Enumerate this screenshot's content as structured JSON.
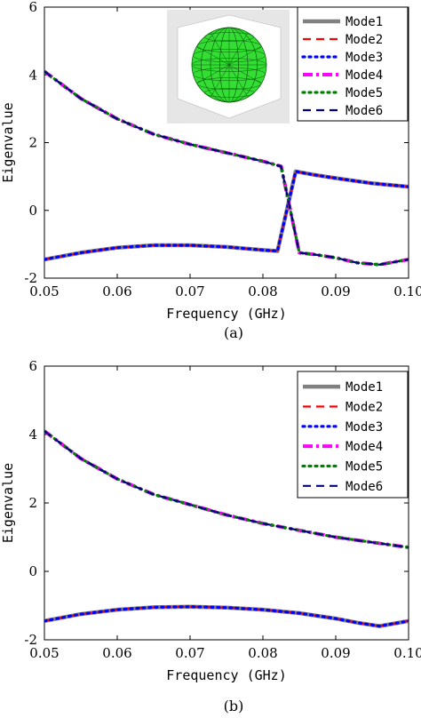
{
  "chart_data": [
    {
      "type": "line",
      "panel_label": "(a)",
      "xlabel": "Frequency (GHz)",
      "ylabel": "Eigenvalue",
      "xlim": [
        0.05,
        0.1
      ],
      "ylim": [
        -2,
        6
      ],
      "x_ticks": [
        "0.05",
        "0.06",
        "0.07",
        "0.08",
        "0.09",
        "0.10"
      ],
      "y_ticks": [
        "-2",
        "0",
        "2",
        "4",
        "6"
      ],
      "legend_position": "top-right",
      "inset": "sphere mesh",
      "series": [
        {
          "name": "Mode1",
          "color": "#808080",
          "style": "solid",
          "x": [
            0.05,
            0.055,
            0.06,
            0.065,
            0.07,
            0.075,
            0.08,
            0.082,
            0.0845,
            0.087,
            0.09,
            0.095,
            0.1
          ],
          "y": [
            -1.45,
            -1.25,
            -1.1,
            -1.03,
            -1.03,
            -1.08,
            -1.17,
            -1.2,
            1.15,
            1.05,
            0.95,
            0.8,
            0.7
          ]
        },
        {
          "name": "Mode2",
          "color": "#ff0000",
          "style": "dash",
          "x": [
            0.05,
            0.055,
            0.06,
            0.065,
            0.07,
            0.075,
            0.08,
            0.082,
            0.0845,
            0.087,
            0.09,
            0.095,
            0.1
          ],
          "y": [
            -1.45,
            -1.25,
            -1.1,
            -1.03,
            -1.03,
            -1.08,
            -1.17,
            -1.2,
            1.15,
            1.05,
            0.95,
            0.8,
            0.7
          ]
        },
        {
          "name": "Mode3",
          "color": "#0000ff",
          "style": "dot",
          "x": [
            0.05,
            0.055,
            0.06,
            0.065,
            0.07,
            0.075,
            0.08,
            0.082,
            0.0845,
            0.087,
            0.09,
            0.095,
            0.1
          ],
          "y": [
            -1.45,
            -1.25,
            -1.1,
            -1.03,
            -1.03,
            -1.08,
            -1.17,
            -1.2,
            1.15,
            1.05,
            0.95,
            0.8,
            0.7
          ]
        },
        {
          "name": "Mode4",
          "color": "#ff00ff",
          "style": "dashdot",
          "x": [
            0.05,
            0.055,
            0.06,
            0.065,
            0.07,
            0.075,
            0.08,
            0.0825,
            0.085,
            0.087,
            0.09,
            0.093,
            0.096,
            0.1
          ],
          "y": [
            4.1,
            3.3,
            2.7,
            2.25,
            1.95,
            1.7,
            1.45,
            1.3,
            -1.25,
            -1.3,
            -1.4,
            -1.55,
            -1.6,
            -1.45
          ]
        },
        {
          "name": "Mode5",
          "color": "#008000",
          "style": "dot",
          "x": [
            0.05,
            0.055,
            0.06,
            0.065,
            0.07,
            0.075,
            0.08,
            0.0825,
            0.085,
            0.087,
            0.09,
            0.093,
            0.096,
            0.1
          ],
          "y": [
            4.1,
            3.3,
            2.7,
            2.25,
            1.95,
            1.7,
            1.45,
            1.3,
            -1.25,
            -1.3,
            -1.4,
            -1.55,
            -1.6,
            -1.45
          ]
        },
        {
          "name": "Mode6",
          "color": "#000080",
          "style": "dash",
          "x": [
            0.05,
            0.055,
            0.06,
            0.065,
            0.07,
            0.075,
            0.08,
            0.0825,
            0.085,
            0.087,
            0.09,
            0.093,
            0.096,
            0.1
          ],
          "y": [
            4.1,
            3.3,
            2.7,
            2.25,
            1.95,
            1.7,
            1.45,
            1.3,
            -1.25,
            -1.3,
            -1.4,
            -1.55,
            -1.6,
            -1.45
          ]
        }
      ]
    },
    {
      "type": "line",
      "panel_label": "(b)",
      "xlabel": "Frequency (GHz)",
      "ylabel": "Eigenvalue",
      "xlim": [
        0.05,
        0.1
      ],
      "ylim": [
        -2,
        6
      ],
      "x_ticks": [
        "0.05",
        "0.06",
        "0.07",
        "0.08",
        "0.09",
        "0.10"
      ],
      "y_ticks": [
        "-2",
        "0",
        "2",
        "4",
        "6"
      ],
      "legend_position": "top-right",
      "series": [
        {
          "name": "Mode1",
          "color": "#808080",
          "style": "solid",
          "x": [
            0.05,
            0.055,
            0.06,
            0.065,
            0.07,
            0.075,
            0.08,
            0.085,
            0.09,
            0.093,
            0.096,
            0.1
          ],
          "y": [
            -1.45,
            -1.25,
            -1.12,
            -1.05,
            -1.03,
            -1.06,
            -1.12,
            -1.22,
            -1.38,
            -1.5,
            -1.6,
            -1.45
          ]
        },
        {
          "name": "Mode2",
          "color": "#ff0000",
          "style": "dash",
          "x": [
            0.05,
            0.055,
            0.06,
            0.065,
            0.07,
            0.075,
            0.08,
            0.085,
            0.09,
            0.093,
            0.096,
            0.1
          ],
          "y": [
            -1.45,
            -1.25,
            -1.12,
            -1.05,
            -1.03,
            -1.06,
            -1.12,
            -1.22,
            -1.38,
            -1.5,
            -1.6,
            -1.45
          ]
        },
        {
          "name": "Mode3",
          "color": "#0000ff",
          "style": "dot",
          "x": [
            0.05,
            0.055,
            0.06,
            0.065,
            0.07,
            0.075,
            0.08,
            0.085,
            0.09,
            0.093,
            0.096,
            0.1
          ],
          "y": [
            -1.45,
            -1.25,
            -1.12,
            -1.05,
            -1.03,
            -1.06,
            -1.12,
            -1.22,
            -1.38,
            -1.5,
            -1.6,
            -1.45
          ]
        },
        {
          "name": "Mode4",
          "color": "#ff00ff",
          "style": "dashdot",
          "x": [
            0.05,
            0.055,
            0.06,
            0.065,
            0.07,
            0.075,
            0.08,
            0.085,
            0.09,
            0.095,
            0.1
          ],
          "y": [
            4.1,
            3.3,
            2.7,
            2.25,
            1.95,
            1.65,
            1.4,
            1.2,
            1.0,
            0.85,
            0.7
          ]
        },
        {
          "name": "Mode5",
          "color": "#008000",
          "style": "dot",
          "x": [
            0.05,
            0.055,
            0.06,
            0.065,
            0.07,
            0.075,
            0.08,
            0.085,
            0.09,
            0.095,
            0.1
          ],
          "y": [
            4.1,
            3.3,
            2.7,
            2.25,
            1.95,
            1.65,
            1.4,
            1.2,
            1.0,
            0.85,
            0.7
          ]
        },
        {
          "name": "Mode6",
          "color": "#000080",
          "style": "dash",
          "x": [
            0.05,
            0.055,
            0.06,
            0.065,
            0.07,
            0.075,
            0.08,
            0.085,
            0.09,
            0.095,
            0.1
          ],
          "y": [
            4.1,
            3.3,
            2.7,
            2.25,
            1.95,
            1.65,
            1.4,
            1.2,
            1.0,
            0.85,
            0.7
          ]
        }
      ]
    }
  ]
}
